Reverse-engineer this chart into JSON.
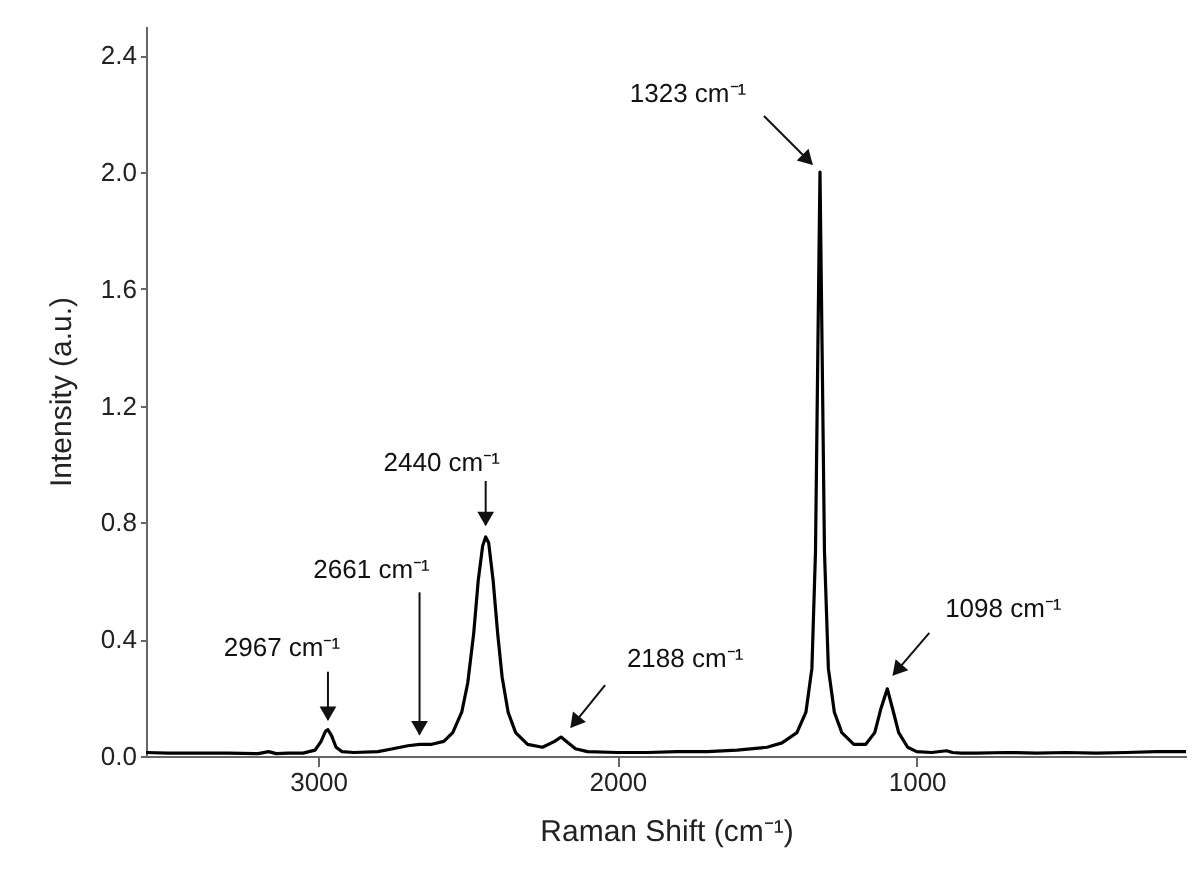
{
  "chart_data": {
    "type": "line",
    "xlabel": "Raman Shift (cm⁻¹)",
    "ylabel": "Intensity (a.u.)",
    "xlim": [
      3575,
      100
    ],
    "xticks": [
      3000,
      2000,
      1000
    ],
    "ylim": [
      0,
      2.5
    ],
    "yticks": [
      {
        "value": 0,
        "label": "0.0"
      },
      {
        "value": 0.4,
        "label": "0.4"
      },
      {
        "value": 0.8,
        "label": "0.8"
      },
      {
        "value": 1.2,
        "label": "1.2"
      },
      {
        "value": 1.6,
        "label": "1.6"
      },
      {
        "value": 2.0,
        "label": "2.0"
      },
      {
        "value": 2.4,
        "label": "2.4"
      }
    ],
    "marker": "none",
    "line_style": "solid",
    "series": [
      {
        "color": "#000000",
        "x": [
          3575,
          3500,
          3400,
          3300,
          3200,
          3165,
          3140,
          3100,
          3050,
          3010,
          2990,
          2975,
          2967,
          2955,
          2940,
          2920,
          2880,
          2800,
          2750,
          2700,
          2661,
          2620,
          2580,
          2550,
          2520,
          2500,
          2480,
          2465,
          2450,
          2440,
          2430,
          2415,
          2400,
          2385,
          2365,
          2340,
          2300,
          2250,
          2210,
          2188,
          2170,
          2140,
          2100,
          2000,
          1900,
          1800,
          1700,
          1600,
          1500,
          1450,
          1400,
          1370,
          1350,
          1338,
          1330,
          1323,
          1316,
          1308,
          1295,
          1275,
          1250,
          1210,
          1170,
          1140,
          1120,
          1098,
          1080,
          1060,
          1030,
          1000,
          950,
          900,
          880,
          850,
          800,
          700,
          600,
          500,
          400,
          300,
          200,
          100
        ],
        "values": [
          0.012,
          0.01,
          0.01,
          0.01,
          0.008,
          0.015,
          0.008,
          0.01,
          0.01,
          0.02,
          0.05,
          0.085,
          0.09,
          0.07,
          0.03,
          0.015,
          0.012,
          0.015,
          0.025,
          0.035,
          0.04,
          0.04,
          0.05,
          0.08,
          0.15,
          0.25,
          0.42,
          0.6,
          0.72,
          0.75,
          0.73,
          0.6,
          0.42,
          0.27,
          0.15,
          0.08,
          0.04,
          0.03,
          0.05,
          0.065,
          0.05,
          0.025,
          0.015,
          0.012,
          0.012,
          0.015,
          0.015,
          0.02,
          0.03,
          0.045,
          0.08,
          0.15,
          0.3,
          0.7,
          1.4,
          2.0,
          1.4,
          0.7,
          0.3,
          0.15,
          0.08,
          0.04,
          0.04,
          0.08,
          0.16,
          0.23,
          0.16,
          0.08,
          0.03,
          0.015,
          0.012,
          0.018,
          0.012,
          0.01,
          0.01,
          0.012,
          0.01,
          0.012,
          0.01,
          0.012,
          0.015,
          0.015
        ]
      }
    ],
    "annotations": [
      {
        "text": "2967 cm⁻¹",
        "x": 2967,
        "y": 0.09
      },
      {
        "text": "2661 cm⁻¹",
        "x": 2661,
        "y": 0.04
      },
      {
        "text": "2440 cm⁻¹",
        "x": 2440,
        "y": 0.75
      },
      {
        "text": "2188 cm⁻¹",
        "x": 2188,
        "y": 0.065
      },
      {
        "text": "1323 cm⁻¹",
        "x": 1323,
        "y": 2.0
      },
      {
        "text": "1098 cm⁻¹",
        "x": 1098,
        "y": 0.23
      }
    ]
  }
}
